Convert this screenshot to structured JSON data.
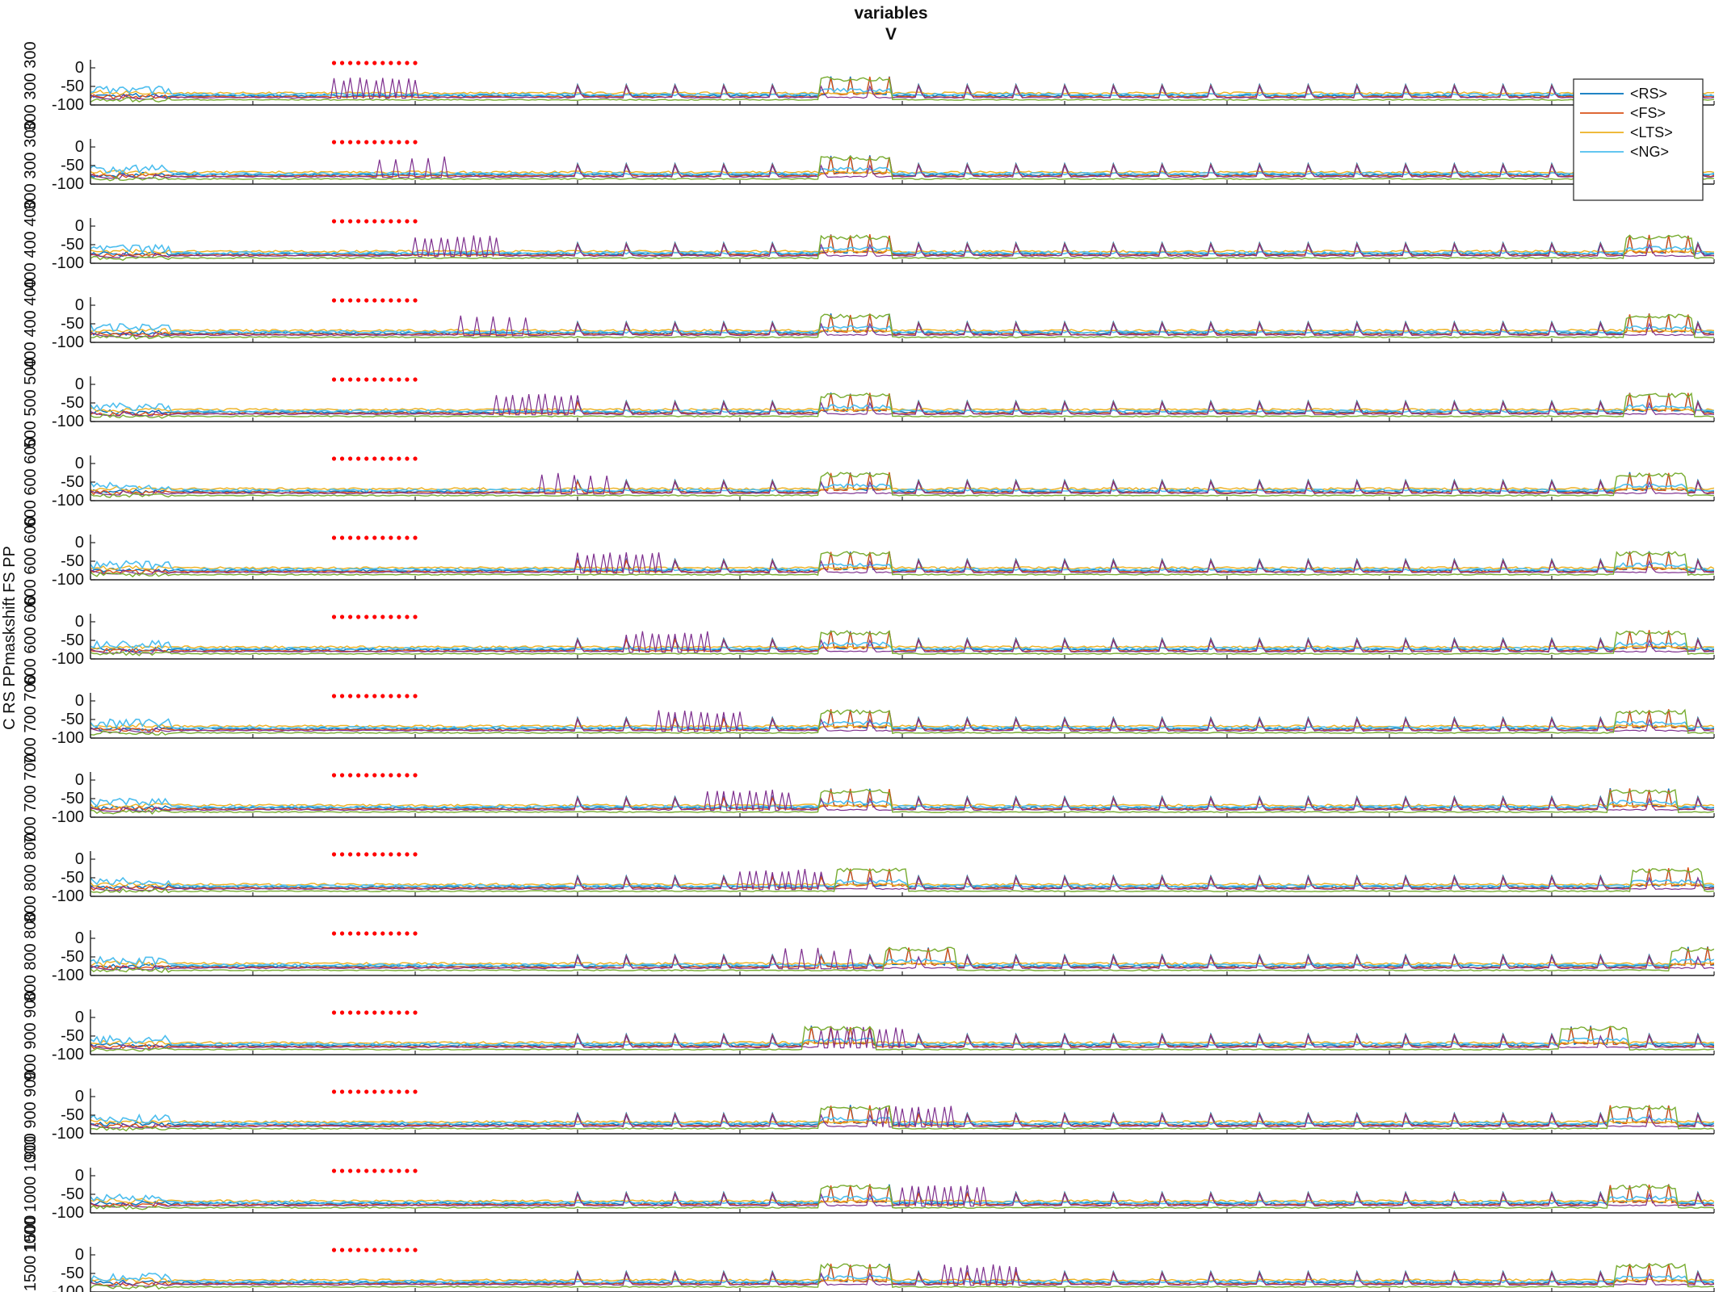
{
  "chart_data": {
    "type": "line",
    "title": [
      "variables",
      "V"
    ],
    "xlabel": "",
    "ylabel": "C RS PPmaskshift FS PP",
    "xlim": [
      0,
      2000
    ],
    "ylim": [
      -100,
      0
    ],
    "x_ticks": [
      0,
      200,
      400,
      600,
      800,
      1000,
      1200,
      1400,
      1600,
      1800,
      2000
    ],
    "y_ticks": [
      0,
      -50,
      -100
    ],
    "panel_labels": [
      "300 300 300",
      "300 300 300",
      "400 400 400",
      "400 400 400",
      "500 500 500",
      "600 600 600",
      "600 600 600",
      "600 600 600",
      "700 700 700",
      "700 700 700",
      "800 800 800",
      "800 800 800",
      "900 900 900",
      "900 900 900",
      "1000 1000 1000",
      "1500 1500 1500"
    ],
    "stim_window": [
      300,
      400
    ],
    "burst_start": [
      300,
      345,
      400,
      455,
      500,
      555,
      600,
      660,
      700,
      760,
      800,
      845,
      900,
      970,
      1000,
      1050
    ],
    "green_plateau_1": [
      [
        900,
        985
      ],
      [
        900,
        985
      ],
      [
        900,
        985
      ],
      [
        900,
        985
      ],
      [
        900,
        985
      ],
      [
        900,
        985
      ],
      [
        900,
        985
      ],
      [
        900,
        985
      ],
      [
        900,
        985
      ],
      [
        900,
        985
      ],
      [
        920,
        1005
      ],
      [
        980,
        1065
      ],
      [
        880,
        965
      ],
      [
        900,
        985
      ],
      [
        900,
        985
      ],
      [
        900,
        985
      ]
    ],
    "green_plateau_2": [
      null,
      [
        1890,
        1975
      ],
      [
        1890,
        1975
      ],
      [
        1890,
        1975
      ],
      [
        1890,
        1975
      ],
      [
        1880,
        1965
      ],
      [
        1880,
        1965
      ],
      [
        1880,
        1965
      ],
      [
        1880,
        1965
      ],
      [
        1870,
        1955
      ],
      [
        1900,
        1985
      ],
      [
        1945,
        2000
      ],
      [
        1810,
        1895
      ],
      [
        1870,
        1955
      ],
      [
        1870,
        1955
      ],
      [
        1880,
        1965
      ]
    ],
    "series": [
      {
        "name": "<RS>",
        "color": "#0072BD"
      },
      {
        "name": "<FS>",
        "color": "#D95319"
      },
      {
        "name": "<LTS>",
        "color": "#EDB120"
      },
      {
        "name": "<NG>",
        "color": "#4DBEEE"
      }
    ],
    "unlabeled_series_colors": [
      "#7E2F8E",
      "#77AC30"
    ],
    "stim_color": "#FF0000"
  }
}
